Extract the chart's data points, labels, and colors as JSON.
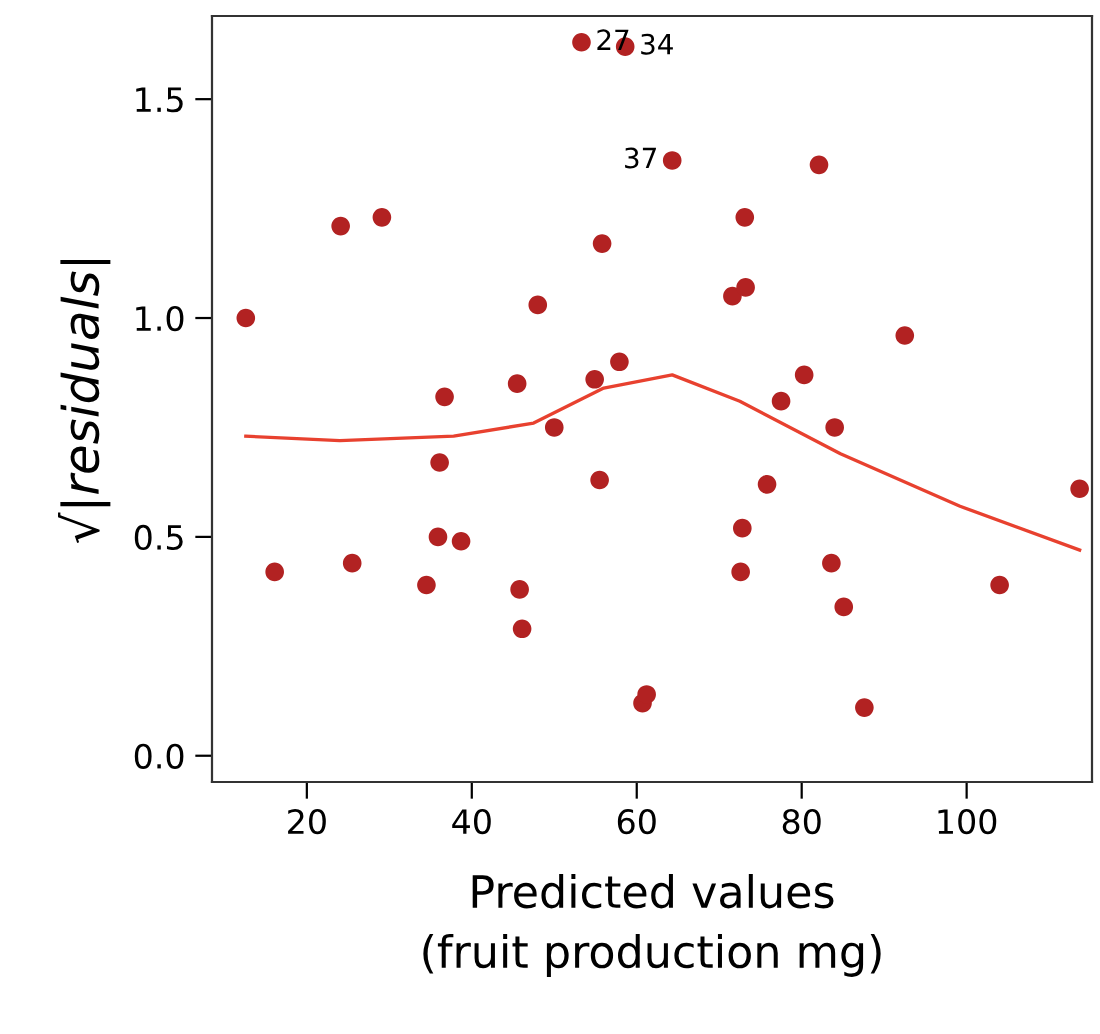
{
  "chart_data": {
    "type": "scatter",
    "xlabel": "Predicted values\n(fruit production mg)",
    "ylabel": "√|residuals|",
    "xlim": [
      8.5,
      115.2
    ],
    "ylim": [
      -0.06,
      1.69
    ],
    "xticks": [
      20,
      40,
      60,
      80,
      100
    ],
    "yticks": [
      {
        "value": 0,
        "label": "0.0"
      },
      {
        "value": 0.5,
        "label": "0.5"
      },
      {
        "value": 1,
        "label": "1.0"
      },
      {
        "value": 1.5,
        "label": "1.5"
      }
    ],
    "grid": false,
    "legend": false,
    "series": [
      {
        "marker": "circle",
        "color": "#b22222",
        "x": [
          12.6,
          24.1,
          29.1,
          53.3,
          58.6,
          64.3,
          55.8,
          48.0,
          36.7,
          45.5,
          54.9,
          57.9,
          50.0,
          36.1,
          55.5,
          16.1,
          25.5,
          35.9,
          38.7,
          34.5,
          45.8,
          46.1,
          60.7,
          61.2,
          82.1,
          73.1,
          71.6,
          73.2,
          92.5,
          80.3,
          77.5,
          84.0,
          75.8,
          72.8,
          72.6,
          83.6,
          85.1,
          104.0,
          113.7,
          87.6
        ],
        "values": [
          1.0,
          1.21,
          1.23,
          1.63,
          1.62,
          1.36,
          1.17,
          1.03,
          0.82,
          0.85,
          0.86,
          0.9,
          0.75,
          0.67,
          0.63,
          0.42,
          0.44,
          0.5,
          0.49,
          0.39,
          0.38,
          0.29,
          0.12,
          0.14,
          1.35,
          1.23,
          1.05,
          1.07,
          0.96,
          0.87,
          0.81,
          0.75,
          0.62,
          0.52,
          0.42,
          0.44,
          0.34,
          0.39,
          0.61,
          0.11
        ]
      },
      {
        "type": "line",
        "marker": "none",
        "color": "#e8412f",
        "line_style": "solid",
        "x": [
          12.6,
          24.0,
          37.8,
          47.5,
          56.0,
          64.3,
          72.5,
          84.7,
          99.2,
          113.7
        ],
        "values": [
          0.73,
          0.72,
          0.73,
          0.76,
          0.84,
          0.87,
          0.81,
          0.69,
          0.57,
          0.47
        ]
      }
    ],
    "annotations": [
      {
        "text": "27",
        "x": 53.3,
        "y": 1.63
      },
      {
        "text": "34",
        "x": 58.6,
        "y": 1.62
      },
      {
        "text": "37",
        "x": 64.3,
        "y": 1.36
      }
    ]
  }
}
